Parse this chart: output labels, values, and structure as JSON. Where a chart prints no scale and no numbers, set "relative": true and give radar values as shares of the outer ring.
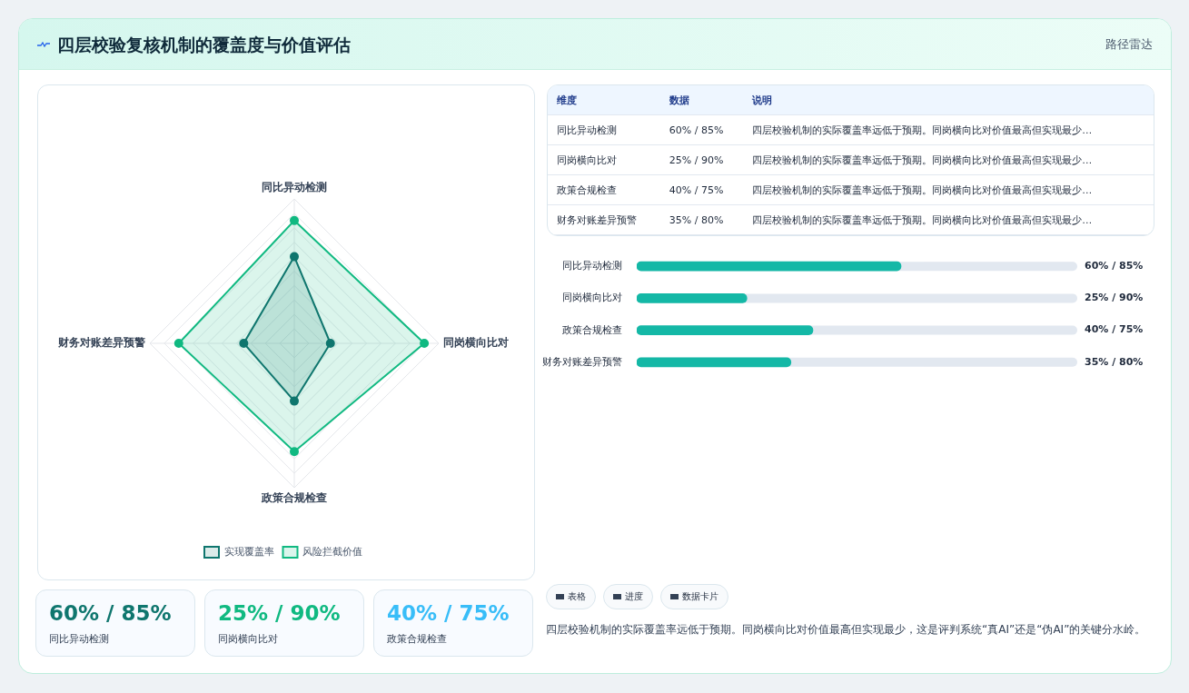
{
  "chart_data": [
    {
      "type": "other",
      "title": "四层校验复核机制的覆盖度与价值评估",
      "subtitle": "路径雷达"
    },
    {
      "type": "radar",
      "categories": [
        "同比异动检测",
        "同岗横向比对",
        "政策合规检查",
        "财务对账差异预警"
      ],
      "relative": true,
      "legend": "bottom",
      "marker": "circle",
      "series": [
        {
          "name": "实现覆盖率",
          "color": "#0f766e",
          "values": [
            0.6,
            0.25,
            0.4,
            0.35
          ]
        },
        {
          "name": "风险拦截价值",
          "color": "#10b981",
          "values": [
            0.85,
            0.9,
            0.75,
            0.8
          ]
        }
      ]
    },
    {
      "type": "bar",
      "orientation": "horizontal",
      "xlim": [
        0,
        100
      ],
      "tick_labels": "y",
      "categories": [
        "同比异动检测",
        "同岗横向比对",
        "政策合规检查",
        "财务对账差异预警"
      ],
      "color": "#14b8a6",
      "values": [
        60,
        25,
        40,
        35
      ],
      "value_labels": [
        "60% / 85%",
        "25% / 90%",
        "40% / 75%",
        "35% / 80%"
      ]
    },
    {
      "type": "other",
      "annotations": [
        "维度",
        "数据",
        "说明",
        "同比异动检测",
        "60% / 85%",
        "四层校验机制的实际覆盖率远低于预期。同岗横向比对价值最高但实现最少…",
        "同岗横向比对",
        "25% / 90%",
        "四层校验机制的实际覆盖率远低于预期。同岗横向比对价值最高但实现最少…",
        "政策合规检查",
        "40% / 75%",
        "四层校验机制的实际覆盖率远低于预期。同岗横向比对价值最高但实现最少…",
        "财务对账差异预警",
        "35% / 80%",
        "四层校验机制的实际覆盖率远低于预期。同岗横向比对价值最高但实现最少…"
      ]
    },
    {
      "type": "other",
      "colors": [
        "#0f766e",
        "#10b981",
        "#38bdf8"
      ],
      "annotations": [
        "60% / 85%",
        "同比异动检测",
        "25% / 90%",
        "同岗横向比对",
        "40% / 75%",
        "政策合规检查"
      ]
    },
    {
      "type": "other",
      "annotations": [
        "表格",
        "进度",
        "数据卡片",
        "四层校验机制的实际覆盖率远低于预期。同岗横向比对价值最高但实现最少，这是评判系统“真AI”还是“伪AI”的关键分水岭。"
      ]
    }
  ]
}
